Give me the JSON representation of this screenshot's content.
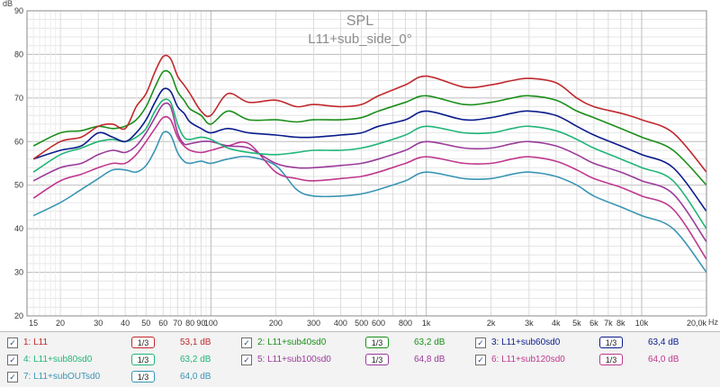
{
  "chart_data": {
    "type": "line",
    "title": "SPL",
    "subtitle": "L11+sub_side_0°",
    "ylabel": "dB",
    "xlabel": "Hz",
    "xscale": "log",
    "xlim": [
      14,
      20000
    ],
    "ylim": [
      20,
      90
    ],
    "grid": true,
    "legend_placement": "bottom",
    "y_ticks": [
      20,
      30,
      40,
      50,
      60,
      70,
      80,
      90
    ],
    "x_ticks": [
      {
        "value": 15,
        "label": "15"
      },
      {
        "value": 20,
        "label": "20"
      },
      {
        "value": 30,
        "label": "30"
      },
      {
        "value": 40,
        "label": "40"
      },
      {
        "value": 50,
        "label": "50"
      },
      {
        "value": 60,
        "label": "60"
      },
      {
        "value": 70,
        "label": "70"
      },
      {
        "value": 80,
        "label": "80"
      },
      {
        "value": 90,
        "label": "90"
      },
      {
        "value": 100,
        "label": "100"
      },
      {
        "value": 200,
        "label": "200"
      },
      {
        "value": 300,
        "label": "300"
      },
      {
        "value": 400,
        "label": "400"
      },
      {
        "value": 500,
        "label": "500"
      },
      {
        "value": 600,
        "label": "600"
      },
      {
        "value": 800,
        "label": "800"
      },
      {
        "value": 1000,
        "label": "1k"
      },
      {
        "value": 2000,
        "label": "2k"
      },
      {
        "value": 3000,
        "label": "3k"
      },
      {
        "value": 4000,
        "label": "4k"
      },
      {
        "value": 5000,
        "label": "5k"
      },
      {
        "value": 6000,
        "label": "6k"
      },
      {
        "value": 7000,
        "label": "7k"
      },
      {
        "value": 8000,
        "label": "8k"
      },
      {
        "value": 10000,
        "label": "10k"
      },
      {
        "value": 20000,
        "label": "20,0k"
      }
    ],
    "x": [
      15,
      20,
      25,
      30,
      35,
      40,
      45,
      50,
      55,
      60,
      65,
      70,
      75,
      80,
      90,
      100,
      120,
      150,
      200,
      250,
      300,
      400,
      500,
      600,
      800,
      1000,
      1500,
      2000,
      2500,
      3000,
      4000,
      5000,
      6000,
      8000,
      10000,
      14000,
      20000
    ],
    "series": [
      {
        "name": "1: L11",
        "color": "#c0282c",
        "smoothing": "1/3",
        "level": "53,1 dB",
        "values": [
          56,
          60,
          61,
          63.5,
          64,
          63,
          68,
          71,
          76,
          79.5,
          79,
          75,
          73,
          71,
          67,
          66,
          71,
          69,
          69.5,
          68,
          68.5,
          68,
          68.5,
          70.5,
          73,
          75,
          72.5,
          73,
          74,
          74.5,
          73.5,
          70,
          68,
          66.5,
          65,
          62,
          53
        ]
      },
      {
        "name": "2: L11+sub40sd0",
        "color": "#1a8f1a",
        "smoothing": "1/3",
        "level": "63,2 dB",
        "values": [
          59,
          62,
          62.5,
          63.5,
          63,
          63.5,
          65,
          68,
          72.5,
          76,
          75.5,
          71.5,
          69.5,
          67.5,
          66,
          64,
          67,
          65,
          65,
          64.5,
          65,
          65,
          65.5,
          67,
          69,
          70.5,
          68.5,
          69,
          70,
          70.5,
          69.5,
          67,
          65.5,
          63,
          61,
          58,
          50
        ]
      },
      {
        "name": "3: L11+sub60sd0",
        "color": "#0b1c8c",
        "smoothing": "1/3",
        "level": "63,4 dB",
        "values": [
          56,
          58,
          59,
          62,
          61,
          60,
          62,
          65,
          69,
          72,
          71.5,
          68,
          66.5,
          64.5,
          63,
          62,
          63,
          62,
          61.5,
          61,
          61,
          61.5,
          62,
          63.5,
          65,
          67,
          65,
          65.5,
          66.5,
          67,
          66,
          63.5,
          61.5,
          59,
          57,
          54,
          44
        ]
      },
      {
        "name": "4: L11+sub80sd0",
        "color": "#21b577",
        "smoothing": "1/3",
        "level": "63,2 dB",
        "values": [
          53,
          57,
          58.5,
          60,
          60.5,
          60,
          61,
          63,
          67,
          69.5,
          69,
          64,
          61,
          60.5,
          61,
          60.5,
          58.5,
          57.5,
          57,
          57.5,
          58,
          58,
          58.5,
          59.5,
          61.5,
          63.5,
          62,
          62,
          63,
          63.5,
          62.5,
          60.5,
          58.5,
          56,
          54,
          51,
          40
        ]
      },
      {
        "name": "5: L11+sub100sd0",
        "color": "#9a3a9a",
        "smoothing": "1/3",
        "level": "64,8 dB",
        "values": [
          51,
          54,
          55,
          57,
          58,
          57.5,
          59,
          62,
          65.5,
          68.5,
          68,
          62,
          59.5,
          59.5,
          60,
          60,
          59,
          58.5,
          55,
          54,
          54,
          54.5,
          55,
          56,
          58,
          60,
          58.5,
          58.5,
          59.5,
          60,
          59,
          57,
          55,
          53,
          51,
          48,
          37
        ]
      },
      {
        "name": "6: L11+sub120sd0",
        "color": "#c0388f",
        "smoothing": "1/3",
        "level": "64,0 dB",
        "values": [
          47,
          51,
          52.5,
          54,
          55,
          55,
          57,
          60,
          63,
          65.5,
          65,
          61,
          59,
          58,
          57.5,
          58,
          59,
          59.5,
          53,
          51.5,
          51,
          51.5,
          52,
          53,
          55,
          56.5,
          55,
          55,
          56,
          56.5,
          55.5,
          53.5,
          51.5,
          49.5,
          47.5,
          44.5,
          33
        ]
      },
      {
        "name": "7: L11+subOUTsd0",
        "color": "#3a95b4",
        "smoothing": "1/3",
        "level": "64,0 dB",
        "values": [
          43,
          46,
          49,
          51.5,
          53.5,
          53.5,
          53,
          54.5,
          58,
          62,
          61.5,
          57.5,
          55.5,
          55,
          55.5,
          55,
          56,
          56.5,
          54.5,
          49,
          47.5,
          47.5,
          48,
          49,
          51,
          53,
          51.5,
          51.5,
          52.5,
          53,
          52,
          50,
          47.5,
          45,
          43,
          40,
          30
        ]
      }
    ]
  }
}
